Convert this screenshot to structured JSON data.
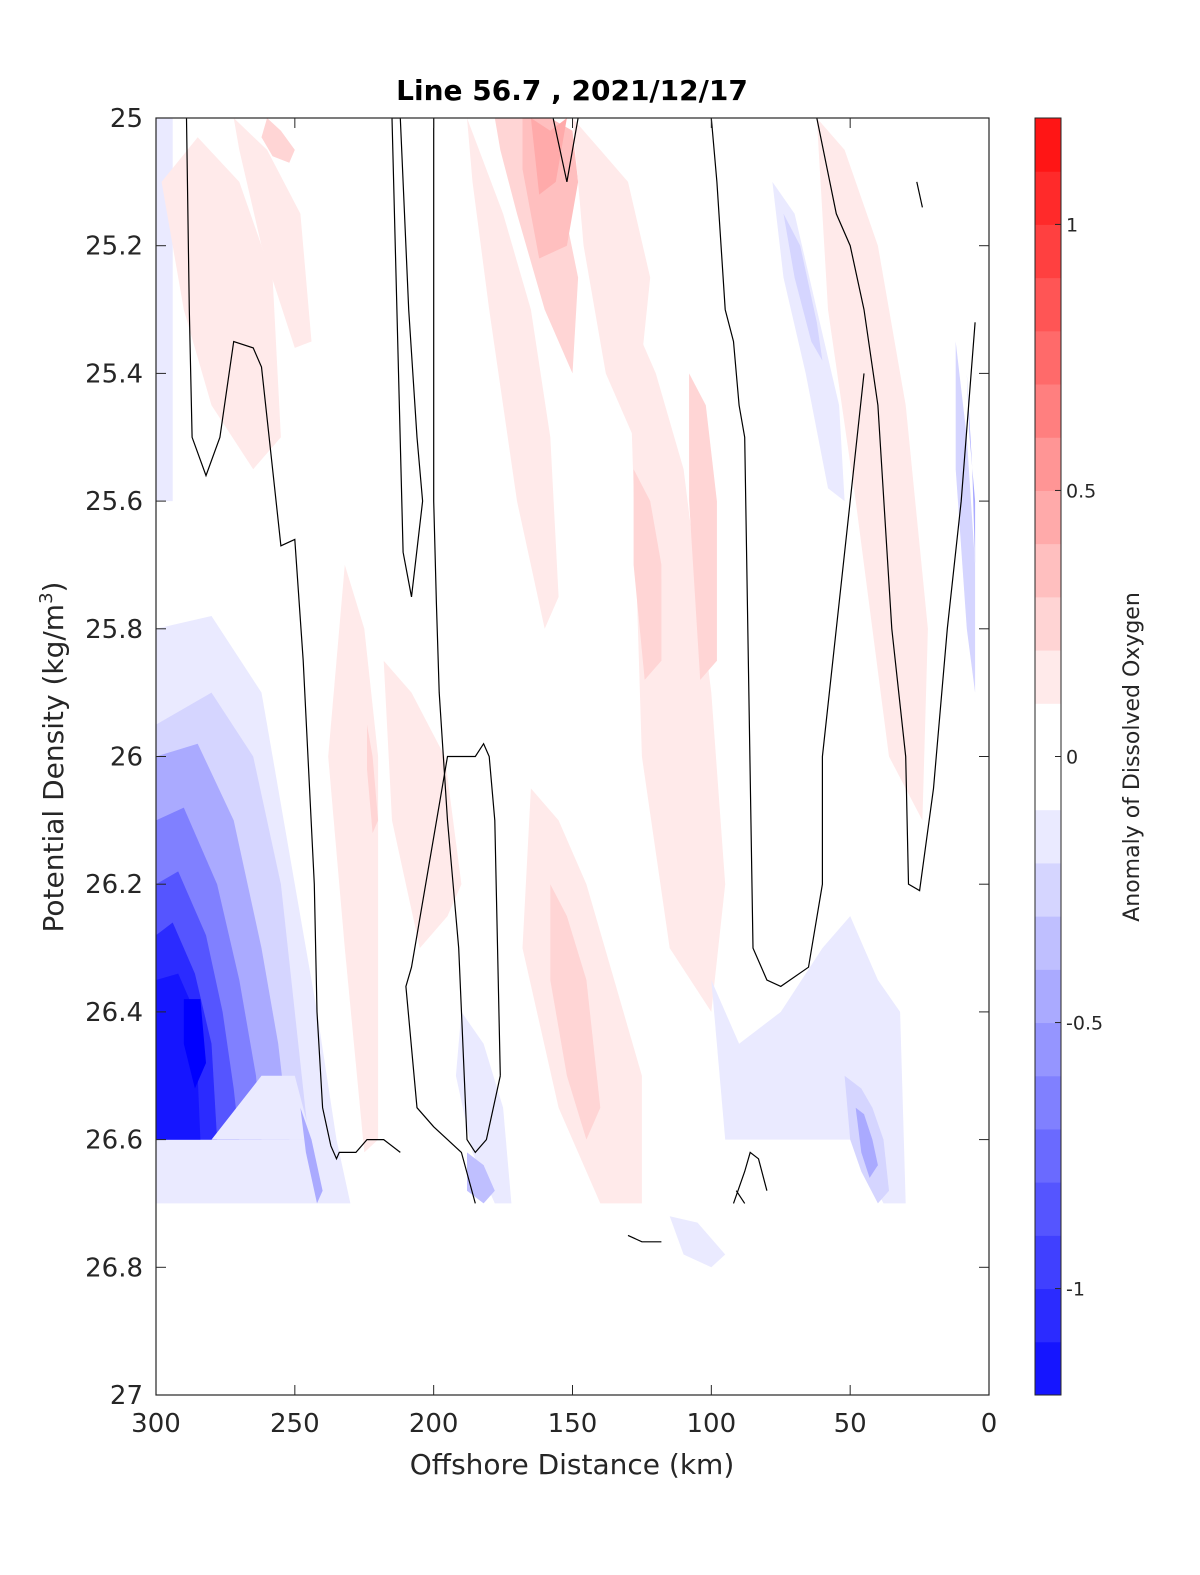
{
  "chart_data": {
    "type": "heatmap",
    "title": "Line 56.7 , 2021/12/17",
    "xlabel": "Offshore Distance (km)",
    "ylabel": "Potential Density (kg/m",
    "ylabel_superscript": "3",
    "ylabel_suffix": ")",
    "colorbar_label": "Anomaly of Dissolved Oxygen",
    "xlim": [
      300,
      0
    ],
    "ylim": [
      25,
      27
    ],
    "x_reversed": true,
    "y_reversed": true,
    "x_ticks": [
      300,
      250,
      200,
      150,
      100,
      50,
      0
    ],
    "x_tick_labels": [
      "300",
      "250",
      "200",
      "150",
      "100",
      "50",
      "0"
    ],
    "y_ticks": [
      25,
      25.2,
      25.4,
      25.6,
      25.8,
      26,
      26.2,
      26.4,
      26.6,
      26.8,
      27
    ],
    "y_tick_labels": [
      "25",
      "25.2",
      "25.4",
      "25.6",
      "25.8",
      "26",
      "26.2",
      "26.4",
      "26.6",
      "26.8",
      "27"
    ],
    "colorbar_limits": [
      -1.2,
      1.2
    ],
    "colorbar_step": 0.1,
    "colorbar_ticks": [
      -1,
      -0.5,
      0,
      0.5,
      1
    ],
    "colorbar_tick_labels": [
      "-1",
      "-0.5",
      "0",
      "0.5",
      "1"
    ],
    "colormap": {
      "negative": "#0000ff",
      "zero": "#ffffff",
      "positive": "#ff0000"
    },
    "contour_level": 0,
    "anomaly_regions": [
      {
        "x": [
          300,
          294,
          294,
          300
        ],
        "y": [
          25.0,
          25.0,
          25.6,
          25.6
        ],
        "value": -0.1
      },
      {
        "x": [
          300,
          280,
          262,
          250,
          242,
          235,
          230,
          300
        ],
        "y": [
          25.8,
          25.78,
          25.9,
          26.2,
          26.4,
          26.6,
          26.7,
          26.7
        ],
        "value": -0.1
      },
      {
        "x": [
          300,
          280,
          265,
          255,
          250,
          245,
          262,
          300
        ],
        "y": [
          25.95,
          25.9,
          26.0,
          26.2,
          26.4,
          26.6,
          26.6,
          26.6
        ],
        "value": -0.2
      },
      {
        "x": [
          300,
          285,
          272,
          262,
          256,
          252,
          258,
          300
        ],
        "y": [
          26.0,
          25.98,
          26.1,
          26.3,
          26.45,
          26.6,
          26.6,
          26.6
        ],
        "value": -0.4
      },
      {
        "x": [
          300,
          290,
          278,
          270,
          264,
          262,
          300
        ],
        "y": [
          26.1,
          26.08,
          26.2,
          26.35,
          26.5,
          26.6,
          26.6
        ],
        "value": -0.6
      },
      {
        "x": [
          300,
          292,
          282,
          276,
          272,
          270,
          300
        ],
        "y": [
          26.2,
          26.18,
          26.28,
          26.4,
          26.52,
          26.6,
          26.6
        ],
        "value": -0.8
      },
      {
        "x": [
          300,
          294,
          286,
          280,
          278,
          300
        ],
        "y": [
          26.28,
          26.26,
          26.34,
          26.45,
          26.6,
          26.6
        ],
        "value": -1.0
      },
      {
        "x": [
          300,
          292,
          286,
          284,
          300
        ],
        "y": [
          26.35,
          26.34,
          26.4,
          26.6,
          26.6
        ],
        "value": -1.1
      },
      {
        "x": [
          290,
          284,
          282,
          286,
          290
        ],
        "y": [
          26.38,
          26.38,
          26.48,
          26.52,
          26.45
        ],
        "value": -1.2
      },
      {
        "x": [
          295,
          280,
          262,
          250,
          244,
          262,
          285,
          300,
          300
        ],
        "y": [
          26.6,
          26.6,
          26.5,
          26.5,
          26.6,
          26.6,
          26.6,
          26.6,
          26.6
        ],
        "value": -0.1
      },
      {
        "x": [
          248,
          244,
          240,
          242,
          246
        ],
        "y": [
          26.55,
          26.6,
          26.68,
          26.7,
          26.62
        ],
        "value": -0.4
      },
      {
        "x": [
          285,
          270,
          258,
          255,
          265,
          280,
          290,
          298
        ],
        "y": [
          25.03,
          25.1,
          25.25,
          25.5,
          25.55,
          25.45,
          25.3,
          25.1
        ],
        "value": 0.1
      },
      {
        "x": [
          272,
          260,
          248,
          244,
          250,
          262,
          270
        ],
        "y": [
          25.0,
          25.05,
          25.15,
          25.35,
          25.36,
          25.2,
          25.05
        ],
        "value": 0.1
      },
      {
        "x": [
          260,
          255,
          250,
          252,
          258,
          262
        ],
        "y": [
          25.0,
          25.02,
          25.05,
          25.07,
          25.06,
          25.03
        ],
        "value": 0.2
      },
      {
        "x": [
          232,
          225,
          220,
          220,
          225,
          232,
          238
        ],
        "y": [
          25.7,
          25.8,
          26.0,
          26.6,
          26.62,
          26.3,
          26.0
        ],
        "value": 0.1
      },
      {
        "x": [
          224,
          222,
          220,
          222,
          224
        ],
        "y": [
          25.95,
          26.0,
          26.1,
          26.12,
          26.02
        ],
        "value": 0.2
      },
      {
        "x": [
          218,
          208,
          196,
          190,
          195,
          205,
          215
        ],
        "y": [
          25.85,
          25.9,
          26.0,
          26.2,
          26.25,
          26.3,
          26.1
        ],
        "value": 0.1
      },
      {
        "x": [
          188,
          175,
          165,
          158,
          155,
          160,
          170,
          180,
          186
        ],
        "y": [
          25.0,
          25.15,
          25.3,
          25.5,
          25.75,
          25.8,
          25.6,
          25.3,
          25.1
        ],
        "value": 0.1
      },
      {
        "x": [
          178,
          165,
          155,
          148,
          150,
          160,
          170,
          176
        ],
        "y": [
          25.0,
          25.0,
          25.1,
          25.25,
          25.4,
          25.3,
          25.15,
          25.05
        ],
        "value": 0.2
      },
      {
        "x": [
          168,
          158,
          150,
          148,
          152,
          162,
          168
        ],
        "y": [
          25.0,
          25.0,
          25.02,
          25.1,
          25.2,
          25.22,
          25.08
        ],
        "value": 0.3
      },
      {
        "x": [
          165,
          158,
          152,
          156,
          162
        ],
        "y": [
          25.0,
          25.02,
          25.0,
          25.1,
          25.12
        ],
        "value": 0.4
      },
      {
        "x": [
          150,
          140,
          130,
          122,
          128,
          138,
          146
        ],
        "y": [
          25.0,
          25.05,
          25.1,
          25.25,
          25.5,
          25.4,
          25.2
        ],
        "value": 0.1
      },
      {
        "x": [
          130,
          120,
          110,
          100,
          95,
          100,
          115,
          125
        ],
        "y": [
          25.3,
          25.4,
          25.55,
          25.9,
          26.2,
          26.4,
          26.3,
          26.0
        ],
        "value": 0.1
      },
      {
        "x": [
          128,
          122,
          118,
          118,
          124,
          128
        ],
        "y": [
          25.55,
          25.6,
          25.7,
          25.85,
          25.88,
          25.7
        ],
        "value": 0.2
      },
      {
        "x": [
          108,
          102,
          98,
          98,
          104,
          108
        ],
        "y": [
          25.4,
          25.45,
          25.6,
          25.85,
          25.88,
          25.6
        ],
        "value": 0.2
      },
      {
        "x": [
          165,
          155,
          145,
          135,
          125,
          125,
          140,
          155,
          168
        ],
        "y": [
          26.05,
          26.1,
          26.2,
          26.35,
          26.5,
          26.7,
          26.7,
          26.55,
          26.3
        ],
        "value": 0.1
      },
      {
        "x": [
          158,
          152,
          145,
          140,
          145,
          152,
          158
        ],
        "y": [
          26.2,
          26.25,
          26.35,
          26.55,
          26.6,
          26.5,
          26.35
        ],
        "value": 0.2
      },
      {
        "x": [
          62,
          52,
          40,
          30,
          22,
          24,
          36,
          48,
          58
        ],
        "y": [
          25.0,
          25.05,
          25.2,
          25.45,
          25.8,
          26.1,
          26.0,
          25.6,
          25.3
        ],
        "value": 0.1
      },
      {
        "x": [
          78,
          70,
          62,
          54,
          52,
          58,
          66,
          74
        ],
        "y": [
          25.1,
          25.15,
          25.3,
          25.45,
          25.6,
          25.58,
          25.4,
          25.25
        ],
        "value": -0.1
      },
      {
        "x": [
          74,
          68,
          62,
          60,
          64,
          70
        ],
        "y": [
          25.15,
          25.2,
          25.32,
          25.38,
          25.35,
          25.25
        ],
        "value": -0.2
      },
      {
        "x": [
          100,
          90,
          75,
          60,
          50,
          45,
          40,
          32,
          30,
          38,
          50,
          62,
          80,
          95
        ],
        "y": [
          26.35,
          26.45,
          26.4,
          26.3,
          26.25,
          26.3,
          26.35,
          26.4,
          26.7,
          26.7,
          26.6,
          26.6,
          26.6,
          26.6
        ],
        "value": -0.1
      },
      {
        "x": [
          52,
          46,
          42,
          38,
          36,
          40,
          46,
          50
        ],
        "y": [
          26.5,
          26.52,
          26.55,
          26.6,
          26.68,
          26.7,
          26.65,
          26.6
        ],
        "value": -0.2
      },
      {
        "x": [
          48,
          45,
          42,
          40,
          43,
          46
        ],
        "y": [
          26.55,
          26.56,
          26.6,
          26.64,
          26.66,
          26.62
        ],
        "value": -0.4
      },
      {
        "x": [
          190,
          182,
          175,
          172,
          178,
          186,
          192
        ],
        "y": [
          26.4,
          26.45,
          26.55,
          26.7,
          26.7,
          26.62,
          26.5
        ],
        "value": -0.1
      },
      {
        "x": [
          188,
          182,
          178,
          182,
          188
        ],
        "y": [
          26.62,
          26.64,
          26.68,
          26.7,
          26.68
        ],
        "value": -0.3
      },
      {
        "x": [
          115,
          105,
          95,
          100,
          110
        ],
        "y": [
          26.72,
          26.73,
          26.78,
          26.8,
          26.78
        ],
        "value": -0.1
      },
      {
        "x": [
          12,
          8,
          5,
          5,
          8,
          12
        ],
        "y": [
          25.35,
          25.5,
          25.7,
          25.9,
          25.8,
          25.55
        ],
        "value": -0.2
      },
      {
        "x": [
          8,
          6,
          5,
          5,
          7
        ],
        "y": [
          25.4,
          25.55,
          25.7,
          25.6,
          25.5
        ],
        "value": -0.4
      }
    ],
    "zero_contours": [
      {
        "x": [
          289,
          288,
          287,
          282,
          277,
          272,
          265,
          262,
          258,
          255,
          250,
          247,
          243,
          242,
          240,
          237,
          235,
          234,
          232,
          228,
          224,
          218,
          212
        ],
        "y": [
          25.0,
          25.3,
          25.5,
          25.56,
          25.5,
          25.35,
          25.36,
          25.39,
          25.55,
          25.67,
          25.66,
          25.85,
          26.2,
          26.4,
          26.55,
          26.61,
          26.63,
          26.62,
          26.62,
          26.62,
          26.6,
          26.6,
          26.62
        ]
      },
      {
        "x": [
          212,
          209,
          206,
          204,
          208,
          211,
          215,
          212
        ],
        "y": [
          25.0,
          25.3,
          25.5,
          25.6,
          25.75,
          25.68,
          25.0,
          25.0
        ]
      },
      {
        "x": [
          200,
          200,
          200,
          199,
          198,
          195,
          191,
          188,
          185,
          181,
          176
        ],
        "y": [
          25.0,
          25.3,
          25.6,
          25.76,
          25.9,
          26.1,
          26.3,
          26.6,
          26.62,
          26.6,
          26.5
        ]
      },
      {
        "x": [
          176,
          178,
          180,
          182,
          185,
          195,
          208,
          210,
          206,
          200,
          195,
          190,
          185
        ],
        "y": [
          26.5,
          26.1,
          26.0,
          25.98,
          26.0,
          26.0,
          26.33,
          26.36,
          26.55,
          26.58,
          26.6,
          26.62,
          26.7
        ]
      },
      {
        "x": [
          157,
          152,
          148
        ],
        "y": [
          25.0,
          25.1,
          25.0
        ]
      },
      {
        "x": [
          130,
          125,
          118
        ],
        "y": [
          26.75,
          26.76,
          26.76
        ]
      },
      {
        "x": [
          100,
          98,
          95,
          92,
          90,
          88,
          85,
          80,
          75,
          65,
          60,
          60,
          55,
          50,
          45
        ],
        "y": [
          25.0,
          25.1,
          25.3,
          25.35,
          25.45,
          25.5,
          26.3,
          26.35,
          26.36,
          26.33,
          26.2,
          26.0,
          25.8,
          25.6,
          25.4
        ]
      },
      {
        "x": [
          62,
          55,
          50,
          45,
          40,
          35,
          30,
          29,
          25,
          20,
          15,
          10,
          5
        ],
        "y": [
          25.0,
          25.15,
          25.2,
          25.3,
          25.45,
          25.8,
          26.0,
          26.2,
          26.21,
          26.05,
          25.8,
          25.6,
          25.32
        ]
      },
      {
        "x": [
          26,
          24
        ],
        "y": [
          25.1,
          25.14
        ]
      },
      {
        "x": [
          92,
          88,
          86,
          83,
          80
        ],
        "y": [
          26.7,
          26.65,
          26.62,
          26.63,
          26.68
        ]
      },
      {
        "x": [
          91,
          88
        ],
        "y": [
          26.68,
          26.7
        ]
      }
    ]
  }
}
